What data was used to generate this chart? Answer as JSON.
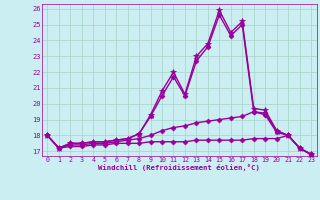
{
  "xlabel": "Windchill (Refroidissement éolien,°C)",
  "background_color": "#cbeef3",
  "grid_color": "#aad8cc",
  "line_color": "#990099",
  "xlim": [
    -0.5,
    23.5
  ],
  "ylim": [
    16.7,
    26.3
  ],
  "yticks": [
    17,
    18,
    19,
    20,
    21,
    22,
    23,
    24,
    25,
    26
  ],
  "xticks": [
    0,
    1,
    2,
    3,
    4,
    5,
    6,
    7,
    8,
    9,
    10,
    11,
    12,
    13,
    14,
    15,
    16,
    17,
    18,
    19,
    20,
    21,
    22,
    23
  ],
  "curves": [
    {
      "x": [
        0,
        1,
        2,
        3,
        4,
        5,
        6,
        7,
        8,
        9,
        10,
        11,
        12,
        13,
        14,
        15,
        16,
        17,
        18,
        19,
        20,
        21,
        22,
        23
      ],
      "y": [
        18.0,
        17.2,
        17.5,
        17.5,
        17.6,
        17.6,
        17.7,
        17.8,
        18.1,
        19.3,
        20.8,
        22.0,
        20.6,
        23.0,
        23.8,
        25.9,
        24.5,
        25.2,
        19.7,
        19.6,
        18.3,
        18.0,
        17.2,
        16.8
      ],
      "marker": "*",
      "markersize": 4.5,
      "linewidth": 1.0
    },
    {
      "x": [
        0,
        1,
        2,
        3,
        4,
        5,
        6,
        7,
        8,
        9,
        10,
        11,
        12,
        13,
        14,
        15,
        16,
        17,
        18,
        19,
        20,
        21,
        22,
        23
      ],
      "y": [
        18.0,
        17.2,
        17.5,
        17.5,
        17.6,
        17.6,
        17.7,
        17.8,
        18.1,
        19.2,
        20.5,
        21.7,
        20.5,
        22.7,
        23.6,
        25.6,
        24.3,
        25.0,
        19.5,
        19.3,
        18.2,
        18.0,
        17.2,
        16.8
      ],
      "marker": "D",
      "markersize": 2.5,
      "linewidth": 1.0
    },
    {
      "x": [
        0,
        1,
        2,
        3,
        4,
        5,
        6,
        7,
        8,
        9,
        10,
        11,
        12,
        13,
        14,
        15,
        16,
        17,
        18,
        19,
        20,
        21,
        22,
        23
      ],
      "y": [
        18.0,
        17.2,
        17.4,
        17.4,
        17.5,
        17.5,
        17.6,
        17.7,
        17.8,
        18.0,
        18.3,
        18.5,
        18.6,
        18.8,
        18.9,
        19.0,
        19.1,
        19.2,
        19.5,
        19.4,
        18.3,
        18.0,
        17.2,
        16.8
      ],
      "marker": "D",
      "markersize": 2.5,
      "linewidth": 1.0
    },
    {
      "x": [
        0,
        1,
        2,
        3,
        4,
        5,
        6,
        7,
        8,
        9,
        10,
        11,
        12,
        13,
        14,
        15,
        16,
        17,
        18,
        19,
        20,
        21,
        22,
        23
      ],
      "y": [
        18.0,
        17.2,
        17.3,
        17.3,
        17.4,
        17.4,
        17.5,
        17.5,
        17.5,
        17.6,
        17.6,
        17.6,
        17.6,
        17.7,
        17.7,
        17.7,
        17.7,
        17.7,
        17.8,
        17.8,
        17.8,
        18.0,
        17.2,
        16.8
      ],
      "marker": "D",
      "markersize": 2.5,
      "linewidth": 1.0
    }
  ]
}
